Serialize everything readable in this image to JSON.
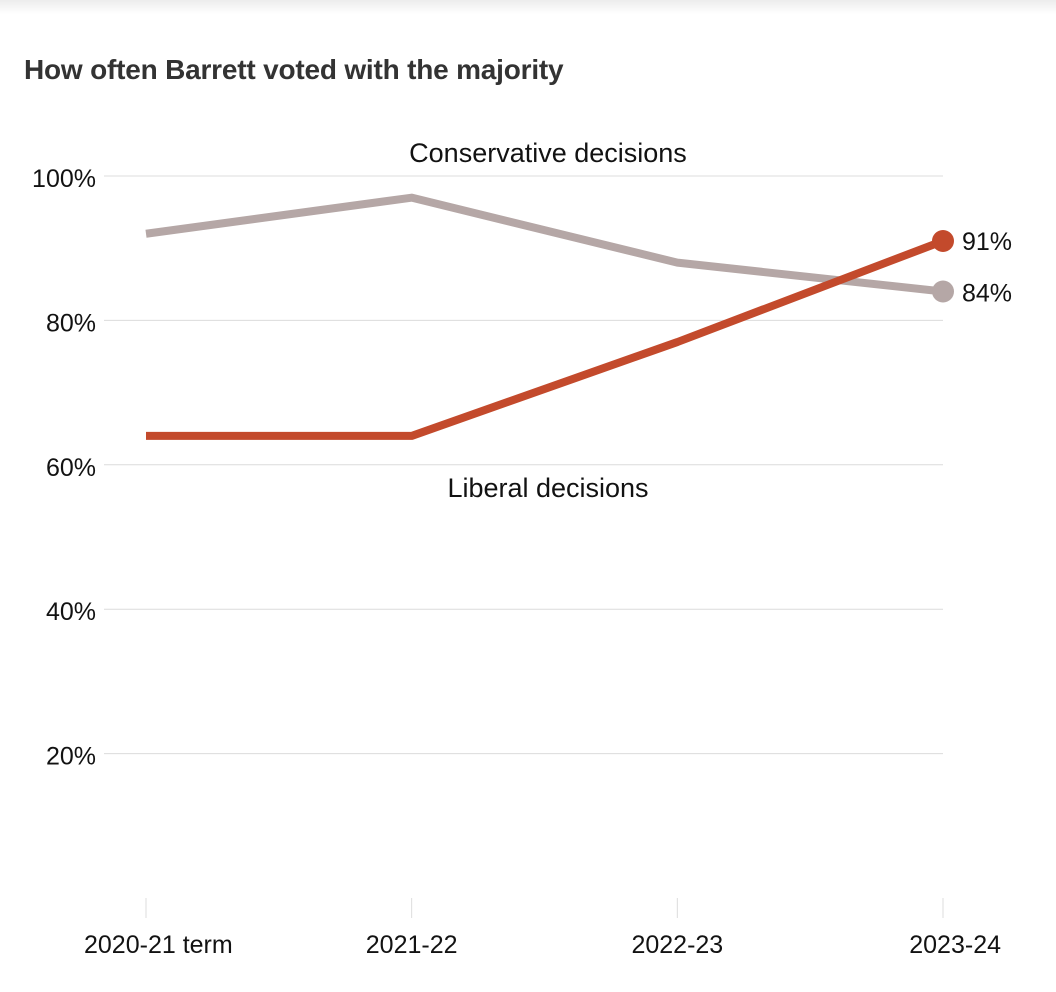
{
  "colors": {
    "conservative": "#b5a7a6",
    "liberal": "#c34a2c",
    "grid": "#dcdcdc",
    "text": "#121212",
    "title": "#333333"
  },
  "chart_data": {
    "type": "line",
    "title": "How often Barrett voted with the majority",
    "xlabel": "",
    "ylabel": "",
    "x": [
      "2020-21 term",
      "2021-22",
      "2022-23",
      "2023-24"
    ],
    "ylim": [
      0,
      100
    ],
    "yticks": [
      20,
      40,
      60,
      80,
      100
    ],
    "ytick_labels": [
      "20%",
      "40%",
      "60%",
      "80%",
      "100%"
    ],
    "grid": true,
    "series": [
      {
        "name": "Conservative decisions",
        "values": [
          92,
          97,
          88,
          84
        ],
        "end_label": "84%",
        "color": "#b5a7a6"
      },
      {
        "name": "Liberal decisions",
        "values": [
          64,
          64,
          77,
          91
        ],
        "end_label": "91%",
        "color": "#c34a2c"
      }
    ]
  }
}
